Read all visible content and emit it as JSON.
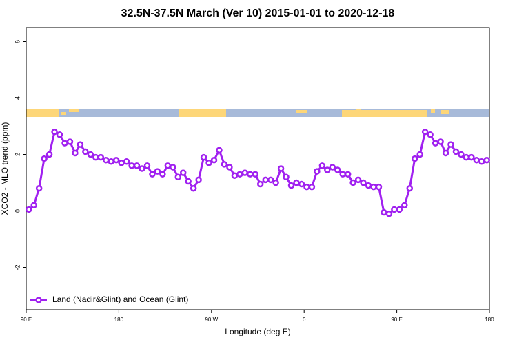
{
  "chart_data": {
    "type": "line",
    "title": "32.5N-37.5N March (Ver 10)   2015-01-01 to 2020-12-18",
    "x_label": "Longitude (deg E)",
    "y_label": "XCO2 - MLO trend (ppm)",
    "xlim": [
      90,
      540
    ],
    "xticks": [
      {
        "value": 90,
        "label": "90 E"
      },
      180,
      {
        "value": 270,
        "label": "90 W"
      },
      {
        "value": 360,
        "label": "0"
      },
      {
        "value": 450,
        "label": "90 E"
      },
      {
        "value": 540,
        "label": "180"
      }
    ],
    "ylim": [
      -3.5,
      6.5
    ],
    "yticks": [
      -2,
      0,
      2,
      4,
      6
    ],
    "x": [
      92.5,
      97.5,
      102.5,
      107.5,
      112.5,
      117.5,
      122.5,
      127.5,
      132.5,
      137.5,
      142.5,
      147.5,
      152.5,
      157.5,
      162.5,
      167.5,
      172.5,
      177.5,
      182.5,
      187.5,
      192.5,
      197.5,
      202.5,
      207.5,
      212.5,
      217.5,
      222.5,
      227.5,
      232.5,
      237.5,
      242.5,
      247.5,
      252.5,
      257.5,
      262.5,
      267.5,
      272.5,
      277.5,
      282.5,
      287.5,
      292.5,
      297.5,
      302.5,
      307.5,
      312.5,
      317.5,
      322.5,
      327.5,
      332.5,
      337.5,
      342.5,
      347.5,
      352.5,
      357.5,
      362.5,
      367.5,
      372.5,
      377.5,
      382.5,
      387.5,
      392.5,
      397.5,
      402.5,
      407.5,
      412.5,
      417.5,
      422.5,
      427.5,
      432.5,
      437.5,
      442.5,
      447.5,
      452.5,
      457.5,
      462.5,
      467.5,
      472.5,
      477.5,
      482.5,
      487.5,
      492.5,
      497.5,
      502.5,
      507.5,
      512.5,
      517.5,
      522.5,
      527.5,
      532.5,
      537.5
    ],
    "series": [
      {
        "name": "Land (Nadir&Glint) and Ocean (Glint)",
        "color": "#a020f0",
        "values": [
          0.05,
          0.2,
          0.8,
          1.85,
          2.0,
          2.8,
          2.7,
          2.4,
          2.45,
          2.05,
          2.35,
          2.1,
          2.0,
          1.9,
          1.9,
          1.8,
          1.75,
          1.8,
          1.7,
          1.75,
          1.6,
          1.6,
          1.5,
          1.6,
          1.3,
          1.4,
          1.3,
          1.6,
          1.55,
          1.2,
          1.35,
          1.05,
          0.8,
          1.1,
          1.9,
          1.7,
          1.8,
          2.15,
          1.65,
          1.55,
          1.25,
          1.3,
          1.35,
          1.3,
          1.3,
          0.95,
          1.1,
          1.1,
          1.0,
          1.5,
          1.2,
          0.9,
          1.0,
          0.95,
          0.85,
          0.85,
          1.4,
          1.6,
          1.45,
          1.55,
          1.45,
          1.3,
          1.3,
          1.0,
          1.1,
          1.0,
          0.9,
          0.85,
          0.85,
          -0.05,
          -0.1,
          0.05,
          0.05,
          0.2,
          0.8,
          1.85,
          2.0,
          2.8,
          2.7,
          2.4,
          2.45,
          2.05,
          2.35,
          2.1,
          2.0,
          1.9,
          1.9,
          1.8,
          1.75,
          1.8
        ]
      }
    ],
    "legend": "bottom-left"
  }
}
